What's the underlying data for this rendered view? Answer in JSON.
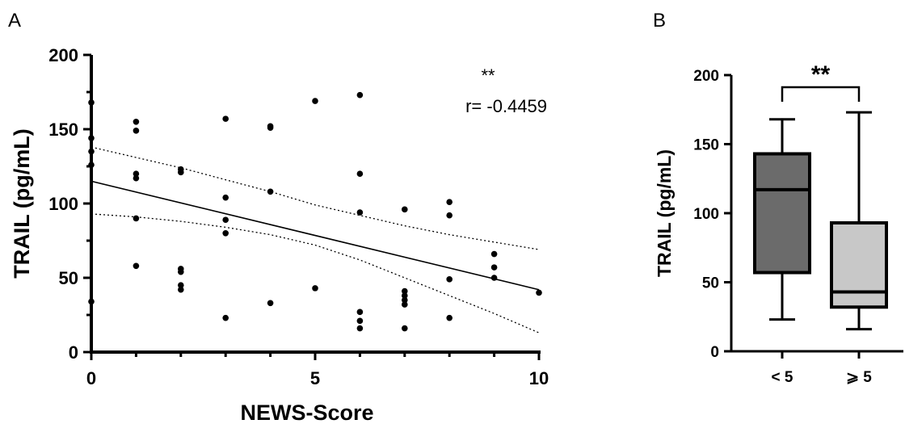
{
  "chart_data": [
    {
      "panel": "A",
      "type": "scatter",
      "xlabel": "NEWS-Score",
      "ylabel": "TRAIL (pg/mL)",
      "xlim": [
        0,
        10
      ],
      "ylim": [
        0,
        200
      ],
      "x_ticks": [
        "0",
        "5",
        "10"
      ],
      "y_ticks": [
        "0",
        "50",
        "100",
        "150",
        "200"
      ],
      "annotation_sig": "**",
      "annotation_r": "r= -0.4459",
      "points": [
        [
          0,
          168
        ],
        [
          0,
          144
        ],
        [
          0,
          135
        ],
        [
          0,
          126
        ],
        [
          0,
          34
        ],
        [
          1,
          155
        ],
        [
          1,
          149
        ],
        [
          1,
          120
        ],
        [
          1,
          117
        ],
        [
          1,
          90
        ],
        [
          1,
          58
        ],
        [
          2,
          123
        ],
        [
          2,
          121
        ],
        [
          2,
          56
        ],
        [
          2,
          54
        ],
        [
          2,
          45
        ],
        [
          2,
          42
        ],
        [
          3,
          157
        ],
        [
          3,
          104
        ],
        [
          3,
          89
        ],
        [
          3,
          80
        ],
        [
          3,
          23
        ],
        [
          4,
          152
        ],
        [
          4,
          151
        ],
        [
          4,
          108
        ],
        [
          4,
          33
        ],
        [
          5,
          169
        ],
        [
          5,
          43
        ],
        [
          6,
          173
        ],
        [
          6,
          120
        ],
        [
          6,
          94
        ],
        [
          6,
          27
        ],
        [
          6,
          21
        ],
        [
          6,
          16
        ],
        [
          7,
          96
        ],
        [
          7,
          41
        ],
        [
          7,
          38
        ],
        [
          7,
          35
        ],
        [
          7,
          32
        ],
        [
          7,
          16
        ],
        [
          8,
          101
        ],
        [
          8,
          92
        ],
        [
          8,
          49
        ],
        [
          8,
          23
        ],
        [
          9,
          66
        ],
        [
          9,
          57
        ],
        [
          9,
          50
        ],
        [
          10,
          40
        ]
      ],
      "regression_line": {
        "x": [
          0,
          10
        ],
        "y": [
          115,
          42
        ]
      },
      "ci_upper": [
        [
          0,
          138
        ],
        [
          1,
          131
        ],
        [
          2,
          124
        ],
        [
          3,
          116
        ],
        [
          4,
          108
        ],
        [
          5,
          99
        ],
        [
          6,
          92
        ],
        [
          7,
          85
        ],
        [
          8,
          79
        ],
        [
          9,
          74
        ],
        [
          10,
          69
        ]
      ],
      "ci_lower": [
        [
          0,
          93
        ],
        [
          1,
          91
        ],
        [
          2,
          88
        ],
        [
          3,
          84
        ],
        [
          4,
          79
        ],
        [
          5,
          72
        ],
        [
          6,
          62
        ],
        [
          7,
          50
        ],
        [
          8,
          38
        ],
        [
          9,
          26
        ],
        [
          10,
          13
        ]
      ]
    },
    {
      "panel": "B",
      "type": "box",
      "ylabel": "TRAIL (pg/mL)",
      "ylim": [
        0,
        200
      ],
      "y_ticks": [
        "0",
        "50",
        "100",
        "150",
        "200"
      ],
      "categories": [
        "< 5",
        "⩾ 5"
      ],
      "boxes": [
        {
          "label": "< 5",
          "min": 23,
          "q1": 57,
          "median": 117,
          "q3": 143,
          "max": 168,
          "color": "#6b6b6b"
        },
        {
          "label": "⩾ 5",
          "min": 16,
          "q1": 32,
          "median": 43,
          "q3": 93,
          "max": 173,
          "color": "#c8c8c8"
        }
      ],
      "significance": "**"
    }
  ],
  "panel_letters": {
    "a": "A",
    "b": "B"
  }
}
